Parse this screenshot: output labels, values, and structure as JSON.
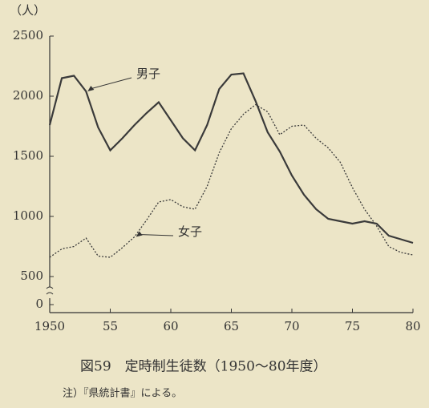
{
  "chart_data": {
    "type": "line",
    "y_unit_label": "（人）",
    "caption": "図59　定時制生徒数（1950〜80年度）",
    "note": "注）『県統計書』による。",
    "x": [
      1950,
      1951,
      1952,
      1953,
      1954,
      1955,
      1956,
      1957,
      1958,
      1959,
      1960,
      1961,
      1962,
      1963,
      1964,
      1965,
      1966,
      1967,
      1968,
      1969,
      1970,
      1971,
      1972,
      1973,
      1974,
      1975,
      1976,
      1977,
      1978,
      1979,
      1980
    ],
    "series": [
      {
        "name": "男子",
        "color": "#3a3a3a",
        "style": "solid",
        "values": [
          1760,
          2150,
          2170,
          2040,
          1740,
          1550,
          1650,
          1760,
          1860,
          1950,
          1800,
          1650,
          1550,
          1760,
          2060,
          2180,
          2190,
          1960,
          1700,
          1540,
          1340,
          1180,
          1060,
          980,
          960,
          940,
          960,
          940,
          840,
          810,
          780
        ]
      },
      {
        "name": "女子",
        "color": "#3a3a3a",
        "style": "dotted",
        "values": [
          660,
          730,
          750,
          820,
          670,
          660,
          740,
          830,
          970,
          1120,
          1140,
          1080,
          1060,
          1250,
          1530,
          1730,
          1850,
          1930,
          1870,
          1680,
          1750,
          1760,
          1650,
          1570,
          1450,
          1240,
          1060,
          920,
          750,
          700,
          680
        ]
      }
    ],
    "xlim": [
      1950,
      1980
    ],
    "xticks": [
      1950,
      {
        "value": 1955,
        "label": "55"
      },
      {
        "value": 1960,
        "label": "60"
      },
      {
        "value": 1965,
        "label": "65"
      },
      {
        "value": 1970,
        "label": "70"
      },
      {
        "value": 1975,
        "label": "75"
      },
      {
        "value": 1980,
        "label": "80"
      }
    ],
    "ylim": [
      0,
      2500
    ],
    "yticks": [
      0,
      500,
      1000,
      1500,
      2000,
      2500
    ],
    "axis_break": [
      0,
      500
    ]
  }
}
